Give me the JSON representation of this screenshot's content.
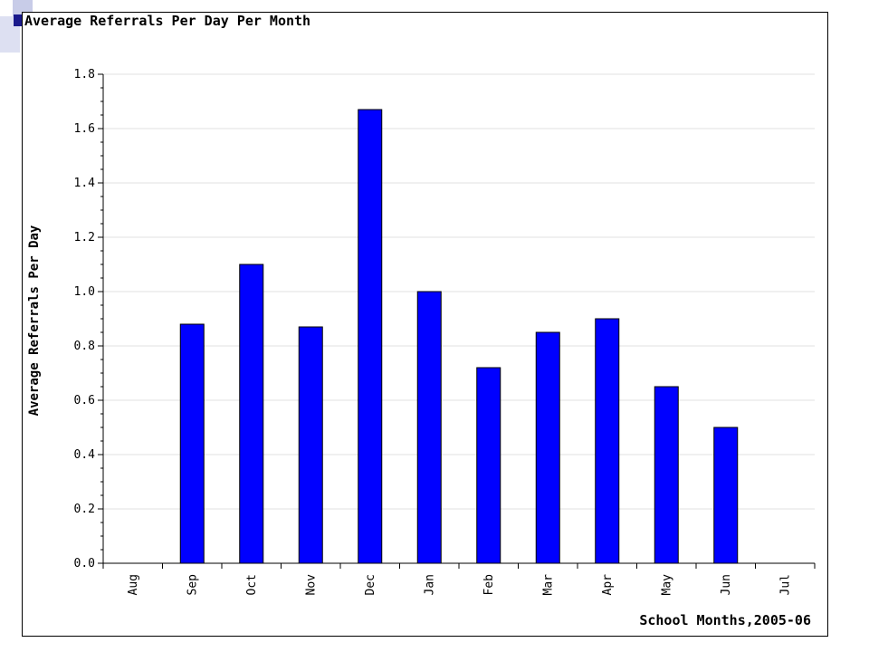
{
  "chart_data": {
    "type": "bar",
    "title": "Average Referrals Per Day Per Month",
    "xlabel": "School Months,2005-06",
    "ylabel": "Average Referrals Per Day",
    "categories": [
      "Aug",
      "Sep",
      "Oct",
      "Nov",
      "Dec",
      "Jan",
      "Feb",
      "Mar",
      "Apr",
      "May",
      "Jun",
      "Jul"
    ],
    "values": [
      0,
      0.88,
      1.1,
      0.87,
      1.67,
      1.0,
      0.72,
      0.85,
      0.9,
      0.65,
      0.5,
      0
    ],
    "ylim": [
      0,
      1.8
    ],
    "yticks": [
      "0.0",
      "0.2",
      "0.4",
      "0.6",
      "0.8",
      "1.0",
      "1.2",
      "1.4",
      "1.6",
      "1.8"
    ],
    "grid": true,
    "bar_color": "#0000ff",
    "gridline_color": "#e0e0e0"
  }
}
